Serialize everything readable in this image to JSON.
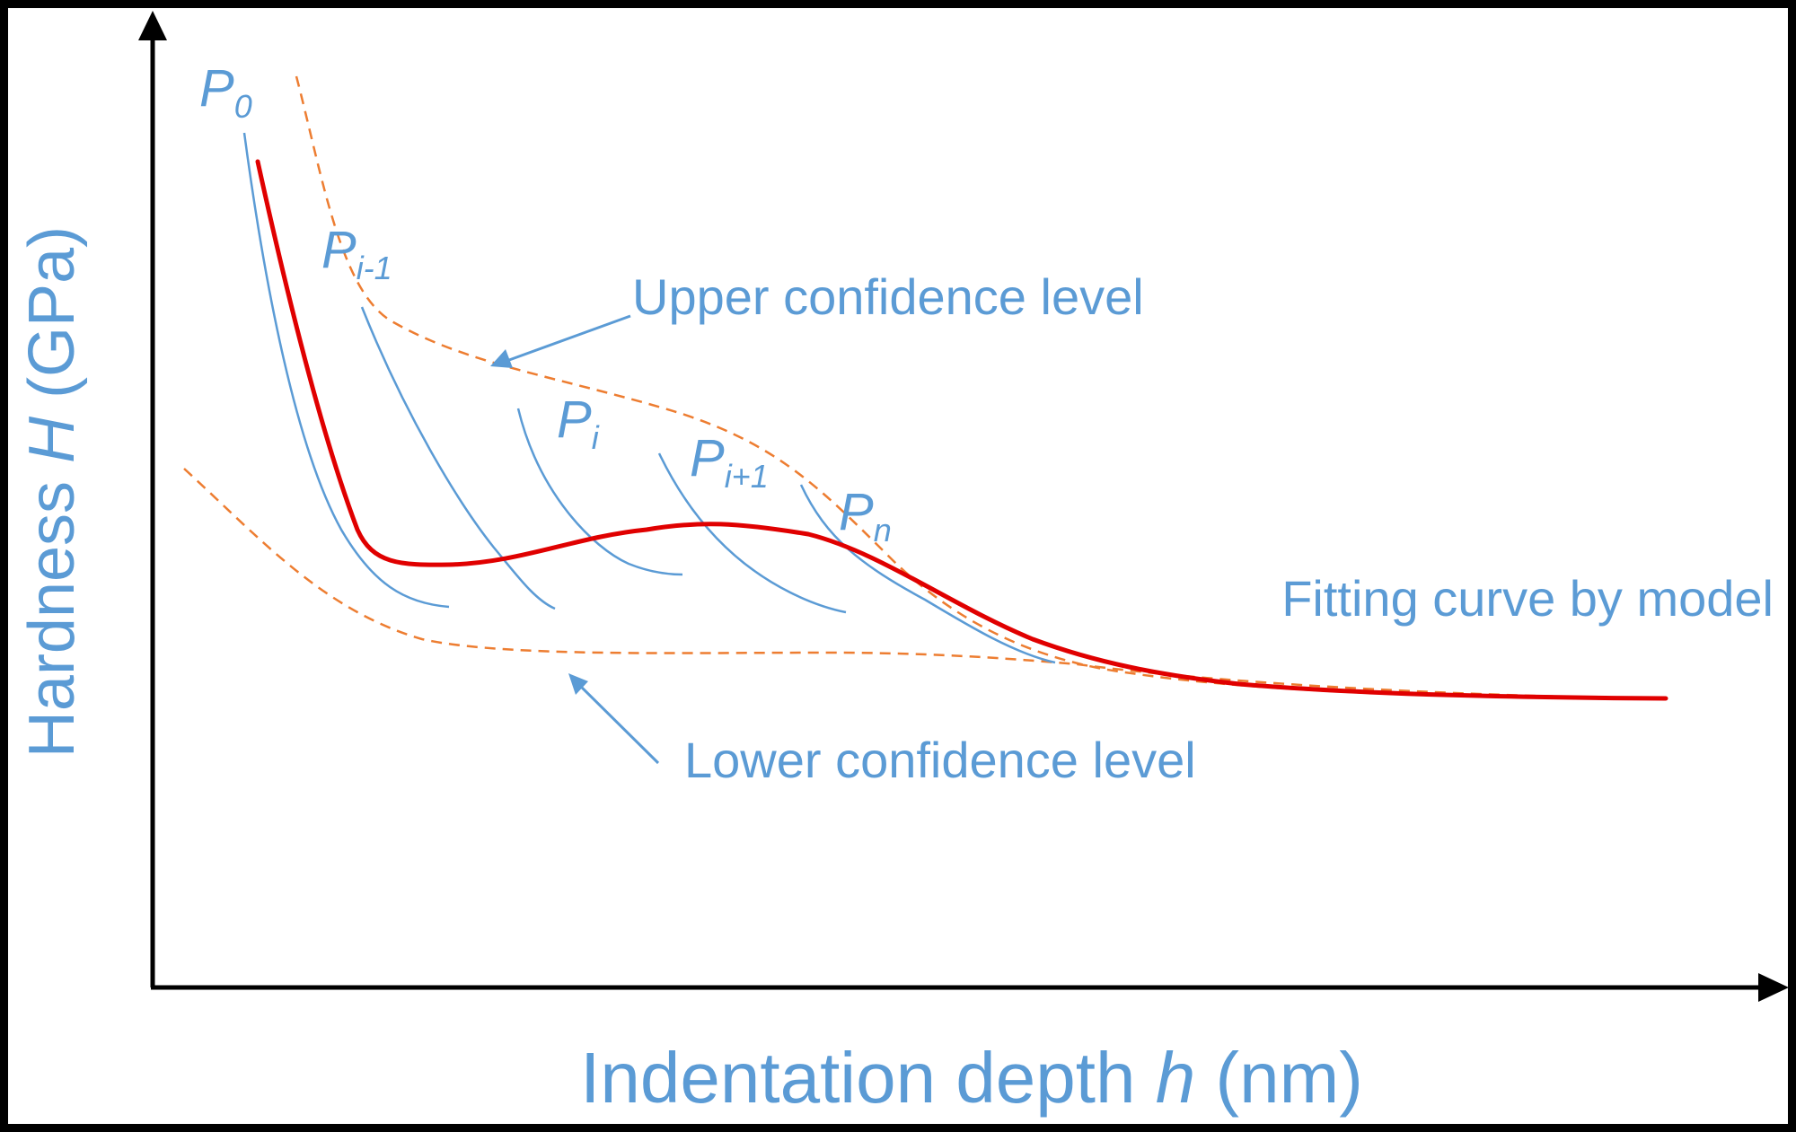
{
  "figure": {
    "x_axis_label": {
      "prefix": "Indentation depth ",
      "variable": "h",
      "unit": " (nm)"
    },
    "y_axis_label": {
      "prefix": "Hardness ",
      "variable": "H",
      "unit": " (GPa)"
    },
    "curve_labels": {
      "p0": {
        "base": "P",
        "sub": "0"
      },
      "p_im1": {
        "base": "P",
        "sub": "i-1"
      },
      "p_i": {
        "base": "P",
        "sub": "i"
      },
      "p_ip1": {
        "base": "P",
        "sub": "i+1"
      },
      "p_n": {
        "base": "P",
        "sub": "n"
      }
    },
    "annotations": {
      "upper": "Upper confidence level",
      "lower": "Lower confidence level",
      "fit": "Fitting curve by model"
    },
    "colors": {
      "label_blue": "#5b9bd5",
      "partial_curve": "#5b9bd5",
      "confidence_band": "#ed7d31",
      "fit_curve": "#e00000",
      "axis": "#000000"
    }
  }
}
